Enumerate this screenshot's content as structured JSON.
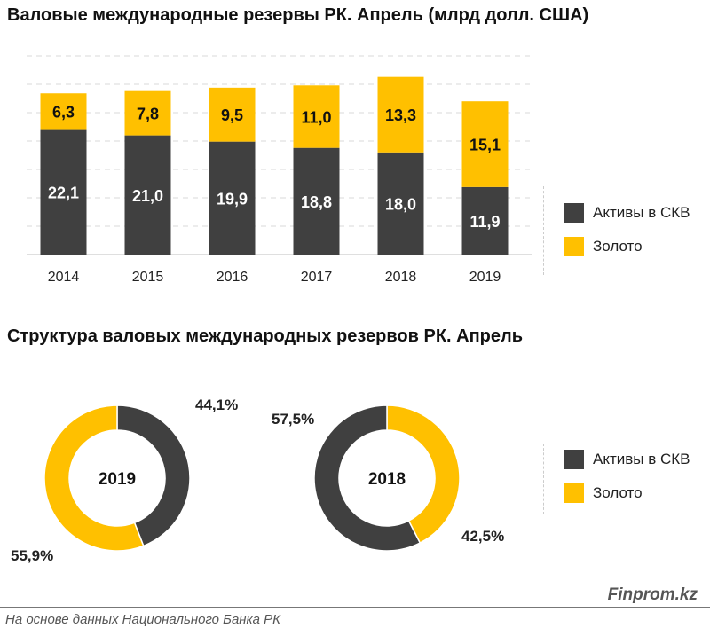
{
  "colors": {
    "dark": "#404040",
    "gold": "#ffc000"
  },
  "chart_data": [
    {
      "type": "bar",
      "stacked": true,
      "title": "Валовые международные резервы РК. Апрель (млрд долл. США)",
      "categories": [
        "2014",
        "2015",
        "2016",
        "2017",
        "2018",
        "2019"
      ],
      "series": [
        {
          "name": "Активы в СКВ",
          "values": [
            22.1,
            21.0,
            19.9,
            18.8,
            18.0,
            11.9
          ],
          "labels": [
            "22,1",
            "21,0",
            "19,9",
            "18,8",
            "18,0",
            "11,9"
          ]
        },
        {
          "name": "Золото",
          "values": [
            6.3,
            7.8,
            9.5,
            11.0,
            13.3,
            15.1
          ],
          "labels": [
            "6,3",
            "7,8",
            "9,5",
            "11,0",
            "13,3",
            "15,1"
          ]
        }
      ],
      "ylim": [
        0,
        35
      ],
      "legend": "right"
    },
    {
      "type": "pie",
      "donut": true,
      "title": "Структура валовых международных резервов РК. Апрель",
      "charts": [
        {
          "name": "2019",
          "slices": [
            {
              "name": "Активы в СКВ",
              "value": 44.1,
              "label": "44,1%"
            },
            {
              "name": "Золото",
              "value": 55.9,
              "label": "55,9%"
            }
          ]
        },
        {
          "name": "2018",
          "slices": [
            {
              "name": "Активы в СКВ",
              "value": 57.5,
              "label": "57,5%"
            },
            {
              "name": "Золото",
              "value": 42.5,
              "label": "42,5%"
            }
          ]
        }
      ],
      "legend": "right"
    }
  ],
  "legend": {
    "items": [
      "Активы в СКВ",
      "Золото"
    ]
  },
  "brand": "Finprom.kz",
  "source": "На основе данных  Национального  Банка РК"
}
